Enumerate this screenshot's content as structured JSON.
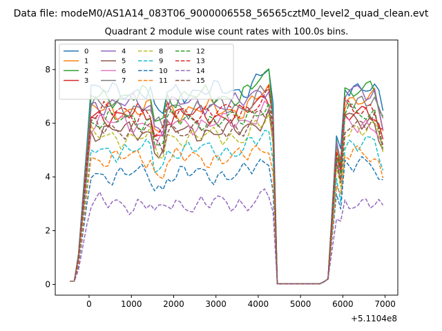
{
  "figure": {
    "suptitle": "Data file: modeM0/AS1A14_083T06_9000006558_56565cztM0_level2_quad_clean.evt",
    "x_offset_label": "+5.1104e8"
  },
  "chart_data": {
    "type": "line",
    "title": "Quadrant 2 module wise count rates with 100.0s bins.",
    "xlabel": "",
    "ylabel": "",
    "xlim": [
      -800,
      7300
    ],
    "ylim": [
      -0.4,
      9.1
    ],
    "xticks": [
      0,
      1000,
      2000,
      3000,
      4000,
      5000,
      6000,
      7000
    ],
    "yticks": [
      0,
      2,
      4,
      6,
      8
    ],
    "xtick_labels": [
      "0",
      "1000",
      "2000",
      "3000",
      "4000",
      "5000",
      "6000",
      "7000"
    ],
    "ytick_labels": [
      "0",
      "2",
      "4",
      "6",
      "8"
    ],
    "grid": false,
    "legend_position": "upper left",
    "legend_columns": 4,
    "segment1_start": -450,
    "segment1_end": 4550,
    "segment2_start": 5450,
    "segment2_end": 6950,
    "x_step": 100,
    "series": [
      {
        "name": "0",
        "color": "#1f77b4",
        "dash": "solid",
        "level1": 7.2,
        "level2": 7.4
      },
      {
        "name": "1",
        "color": "#ff7f0e",
        "dash": "solid",
        "level1": 6.5,
        "level2": 6.9
      },
      {
        "name": "2",
        "color": "#2ca02c",
        "dash": "solid",
        "level1": 7.0,
        "level2": 7.2
      },
      {
        "name": "3",
        "color": "#d62728",
        "dash": "solid",
        "level1": 6.3,
        "level2": 6.3
      },
      {
        "name": "4",
        "color": "#9467bd",
        "dash": "solid",
        "level1": 6.7,
        "level2": 7.1
      },
      {
        "name": "5",
        "color": "#8c564b",
        "dash": "solid",
        "level1": 5.7,
        "level2": 6.1
      },
      {
        "name": "6",
        "color": "#e377c2",
        "dash": "solid",
        "level1": 6.0,
        "level2": 6.0
      },
      {
        "name": "7",
        "color": "#7f7f7f",
        "dash": "solid",
        "level1": 6.6,
        "level2": 6.9
      },
      {
        "name": "8",
        "color": "#bcbd22",
        "dash": "dashed",
        "level1": 5.5,
        "level2": 5.8
      },
      {
        "name": "9",
        "color": "#17becf",
        "dash": "dashed",
        "level1": 5.0,
        "level2": 5.2
      },
      {
        "name": "10",
        "color": "#1f77b4",
        "dash": "dashed",
        "level1": 4.1,
        "level2": 4.4
      },
      {
        "name": "11",
        "color": "#ff7f0e",
        "dash": "dashed",
        "level1": 4.7,
        "level2": 4.8
      },
      {
        "name": "12",
        "color": "#2ca02c",
        "dash": "dashed",
        "level1": 6.1,
        "level2": 6.4
      },
      {
        "name": "13",
        "color": "#d62728",
        "dash": "dashed",
        "level1": 6.4,
        "level2": 6.6
      },
      {
        "name": "14",
        "color": "#9467bd",
        "dash": "dashed",
        "level1": 3.0,
        "level2": 3.1
      },
      {
        "name": "15",
        "color": "#8c564b",
        "dash": "dashed",
        "level1": 5.8,
        "level2": 6.0
      }
    ]
  }
}
